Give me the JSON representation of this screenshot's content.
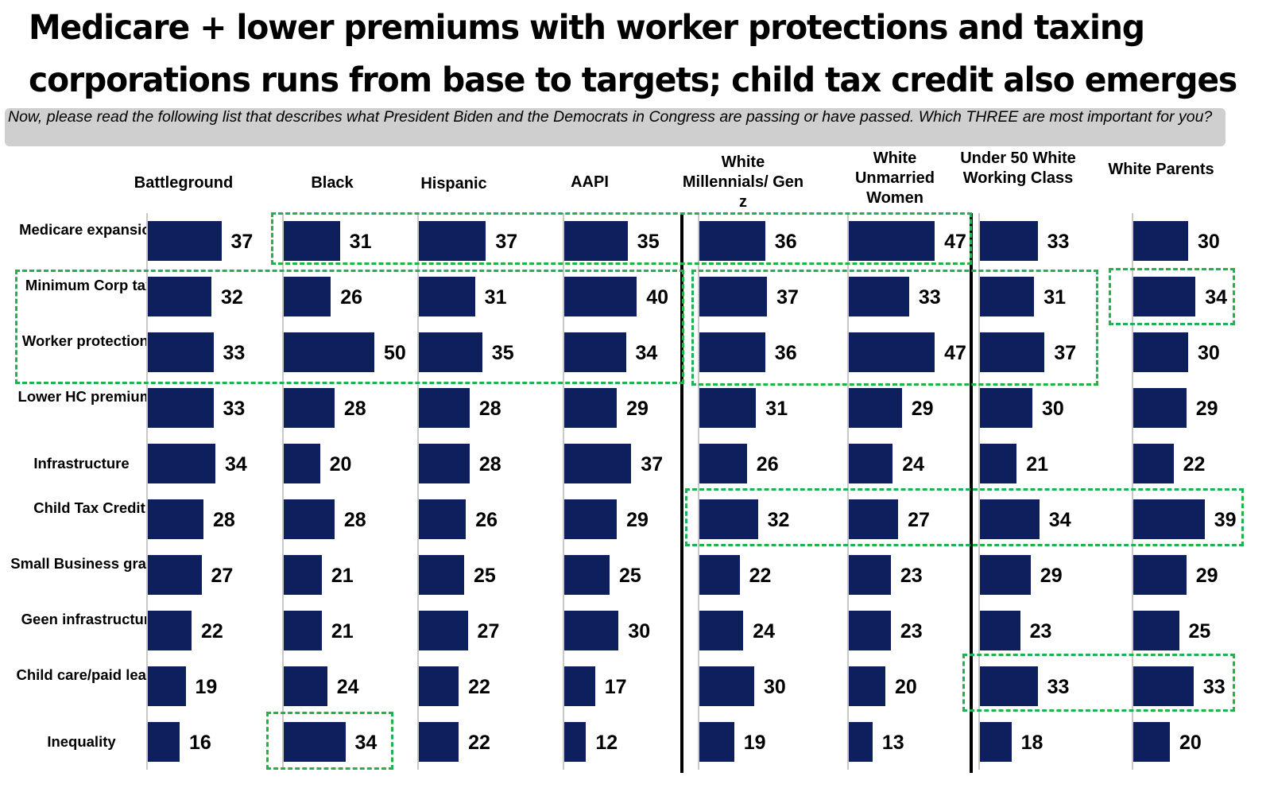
{
  "chart_data": {
    "type": "bar",
    "orientation": "horizontal",
    "title": "Medicare + lower premiums with worker protections and taxing corporations runs from base to targets; child tax credit also emerges",
    "subtitle": "Now, please read the following list that describes what President Biden and the Democrats in Congress are passing or have passed. Which THREE are most important for you?",
    "categories": [
      "Medicare expansion",
      "Minimum Corp tax",
      "Worker protections",
      "Lower HC premiums",
      "Infrastructure",
      "Child Tax Credit",
      "Small Business grants",
      "Geen infrastructure",
      "Child care/paid leave",
      "Inequality"
    ],
    "series": [
      {
        "name": "Battleground",
        "values": [
          37,
          32,
          33,
          33,
          34,
          28,
          27,
          22,
          19,
          16
        ]
      },
      {
        "name": "Black",
        "values": [
          31,
          26,
          50,
          28,
          20,
          28,
          21,
          21,
          24,
          34
        ]
      },
      {
        "name": "Hispanic",
        "values": [
          37,
          31,
          35,
          28,
          28,
          26,
          25,
          27,
          22,
          22
        ]
      },
      {
        "name": "AAPI",
        "values": [
          35,
          40,
          34,
          29,
          37,
          29,
          25,
          30,
          17,
          12
        ]
      },
      {
        "name": "White Millennials/ Gen z",
        "values": [
          36,
          37,
          36,
          31,
          26,
          32,
          22,
          24,
          30,
          19
        ]
      },
      {
        "name": "White Unmarried Women",
        "values": [
          47,
          33,
          47,
          29,
          24,
          27,
          23,
          23,
          20,
          13
        ]
      },
      {
        "name": "Under 50 White Working Class",
        "values": [
          33,
          31,
          37,
          30,
          21,
          34,
          29,
          23,
          33,
          18
        ]
      },
      {
        "name": "White Parents",
        "values": [
          30,
          34,
          30,
          29,
          22,
          39,
          29,
          25,
          33,
          20
        ]
      }
    ],
    "bar_color": "#0d1f5c",
    "highlight_color": "#22b14c"
  }
}
